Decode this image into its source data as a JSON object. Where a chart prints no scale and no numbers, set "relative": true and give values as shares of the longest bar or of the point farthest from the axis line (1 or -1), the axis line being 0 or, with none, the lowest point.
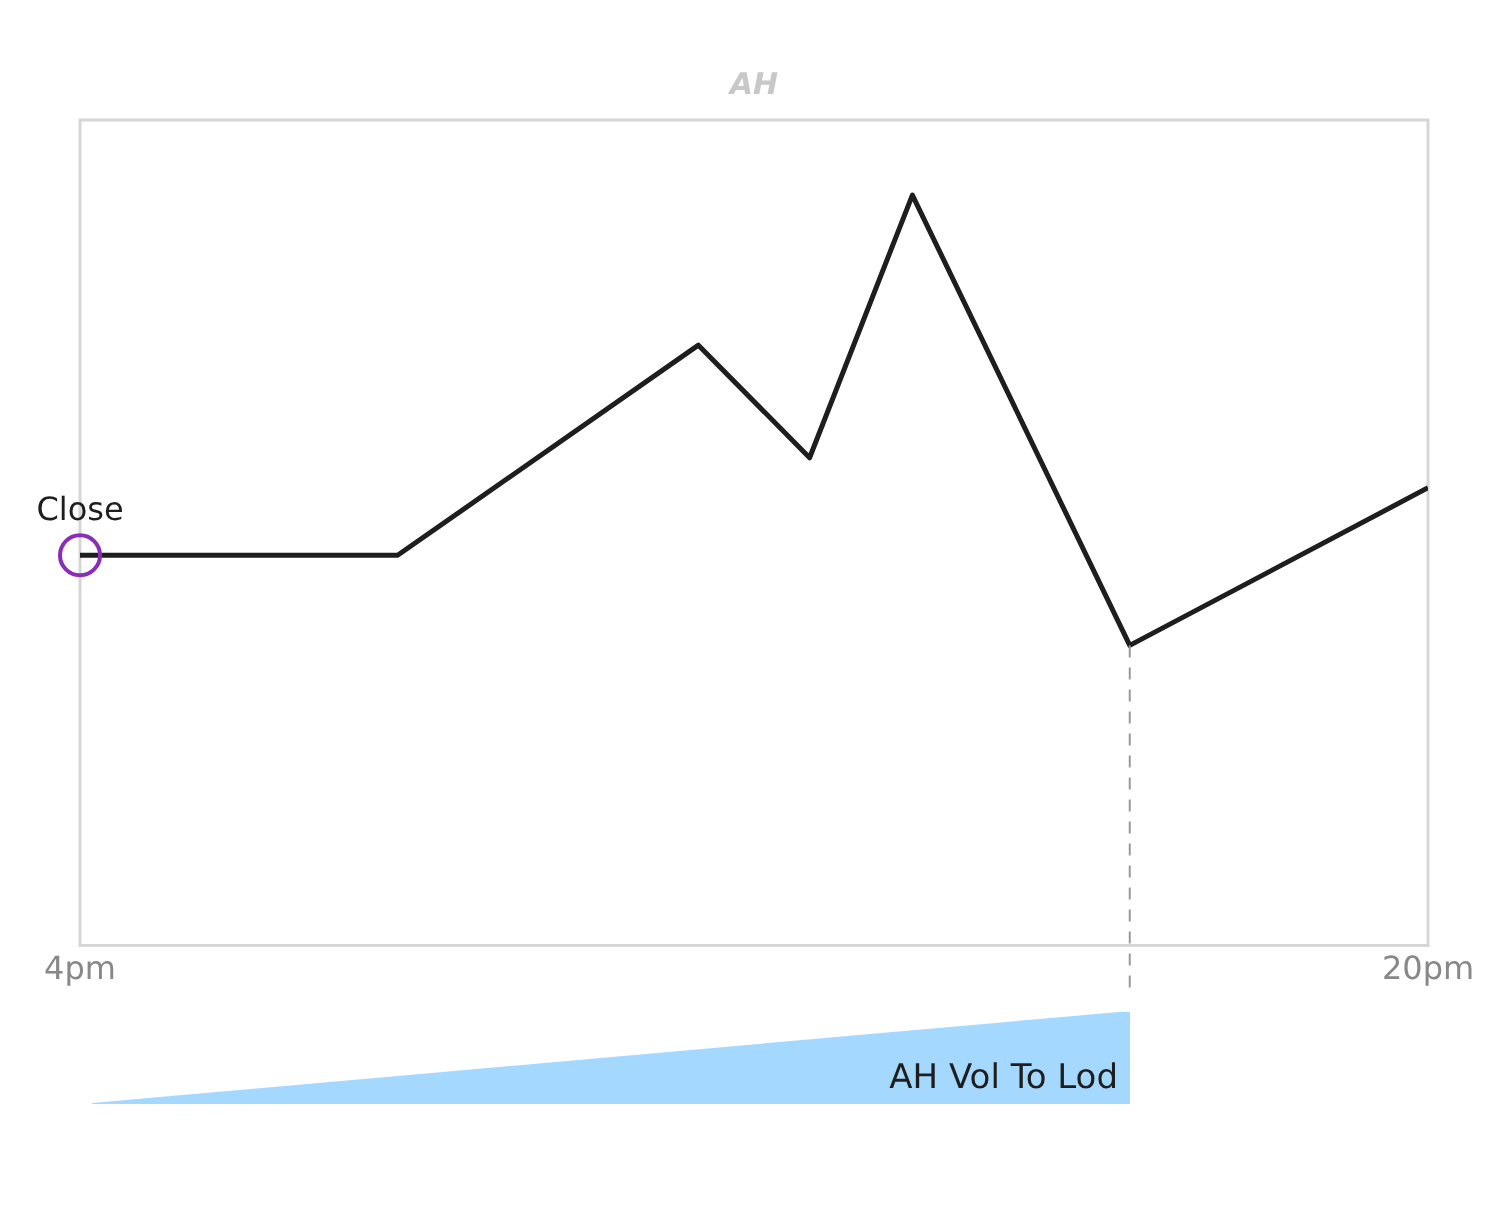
{
  "chart_data": [
    {
      "type": "line",
      "title": "AH",
      "relative": true,
      "x": [
        4,
        7.77,
        11.34,
        12.66,
        13.88,
        16.46,
        20
      ],
      "xlim": [
        4,
        20
      ],
      "xticks": [
        {
          "value": 4,
          "label": "4pm"
        },
        {
          "value": 20,
          "label": "20pm"
        }
      ],
      "series": [
        {
          "color": "#1e1e1e",
          "values": [
            0.52,
            0.52,
            0.8,
            0.65,
            1,
            0.4,
            0.61
          ]
        }
      ],
      "annotations": [
        {
          "text": "Close",
          "x": 4,
          "y": 0.52
        }
      ],
      "ref_lines": [
        {
          "axis": "x",
          "value": 16.46,
          "color": "#999999",
          "line_style": "dashed"
        }
      ],
      "legend": false,
      "marker": "none"
    },
    {
      "type": "area",
      "relative": true,
      "categories": [
        null,
        null
      ],
      "series": [
        {
          "name": "AH Vol To Lod",
          "color": "#a5d8ff",
          "values": [
            0,
            1
          ]
        }
      ],
      "legend": false
    }
  ]
}
